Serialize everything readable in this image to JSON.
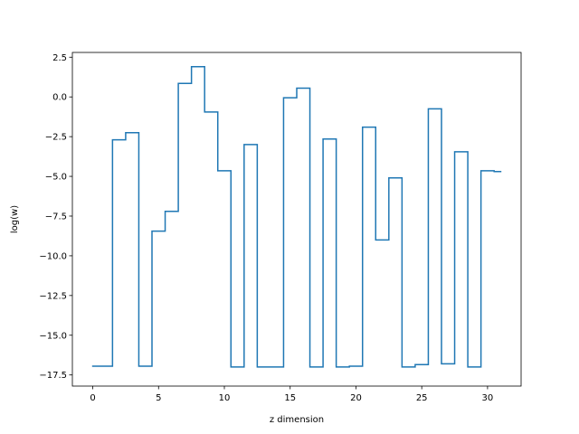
{
  "chart_data": {
    "type": "line",
    "drawstyle": "steps-mid",
    "title": "",
    "xlabel": "z dimension",
    "ylabel": "log(w)",
    "xlim": [
      -1.55,
      32.55
    ],
    "ylim": [
      -18.2,
      2.8
    ],
    "xticks": [
      0,
      5,
      10,
      15,
      20,
      25,
      30
    ],
    "xtick_labels": [
      "0",
      "5",
      "10",
      "15",
      "20",
      "25",
      "30"
    ],
    "yticks": [
      2.5,
      0.0,
      -2.5,
      -5.0,
      -7.5,
      -10.0,
      -12.5,
      -15.0,
      -17.5
    ],
    "ytick_labels": [
      "2.5",
      "0.0",
      "−2.5",
      "−5.0",
      "−7.5",
      "−10.0",
      "−12.5",
      "−15.0",
      "−17.5"
    ],
    "grid": false,
    "legend": "none",
    "color": "#1f77b4",
    "series": [
      {
        "x": [
          0,
          1,
          2,
          3,
          4,
          5,
          6,
          7,
          8,
          9,
          10,
          11,
          12,
          13,
          14,
          15,
          16,
          17,
          18,
          19,
          20,
          21,
          22,
          23,
          24,
          25,
          26,
          27,
          28,
          29,
          30,
          31
        ],
        "values": [
          -16.95,
          -16.95,
          -2.7,
          -2.25,
          -16.95,
          -8.45,
          -7.2,
          0.85,
          1.9,
          -0.95,
          -4.65,
          -17.0,
          -3.0,
          -17.0,
          -17.0,
          -0.05,
          0.55,
          -17.0,
          -2.65,
          -17.0,
          -16.95,
          -1.9,
          -9.0,
          -5.1,
          -17.0,
          -16.85,
          -0.75,
          -16.8,
          -3.45,
          -17.0,
          -4.65,
          -4.7
        ]
      }
    ]
  }
}
